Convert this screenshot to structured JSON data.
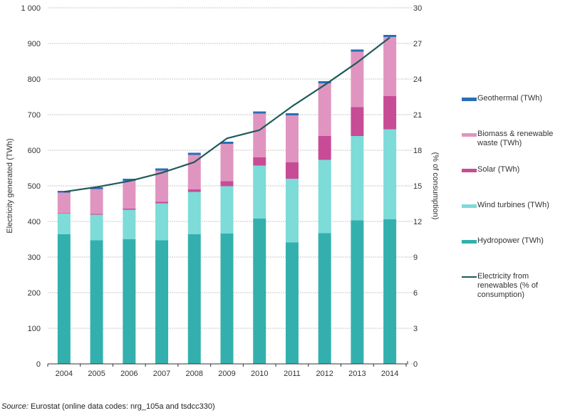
{
  "chart_data": {
    "type": "bar",
    "stacked": true,
    "title": "",
    "categories": [
      "2004",
      "2005",
      "2006",
      "2007",
      "2008",
      "2009",
      "2010",
      "2011",
      "2012",
      "2013",
      "2014"
    ],
    "ylabel": "Electricity generated (TWh)",
    "y2label": "(% of consumption)",
    "ylim": [
      0,
      1000
    ],
    "y2lim": [
      0,
      30
    ],
    "yticks": [
      0,
      100,
      200,
      300,
      400,
      500,
      600,
      700,
      800,
      900,
      1000
    ],
    "yticklabels": [
      "0",
      "100",
      "200",
      "300",
      "400",
      "500",
      "600",
      "700",
      "800",
      "900",
      "1 000"
    ],
    "y2ticks": [
      0,
      3,
      6,
      9,
      12,
      15,
      18,
      21,
      24,
      27,
      30
    ],
    "y2ticklabels": [
      "0",
      "3",
      "6",
      "9",
      "12",
      "15",
      "18",
      "21",
      "24",
      "27",
      "30"
    ],
    "grid": true,
    "legend_position": "right",
    "series": [
      {
        "name": "Hydropower (TWh)",
        "color": "#33b0ad",
        "axis": "left",
        "kind": "bar",
        "values": [
          364,
          347,
          350,
          347,
          364,
          366,
          408,
          341,
          367,
          403,
          406
        ]
      },
      {
        "name": "Wind turbines (TWh)",
        "color": "#7ddbd8",
        "axis": "left",
        "kind": "bar",
        "values": [
          58,
          72,
          83,
          104,
          119,
          133,
          149,
          179,
          206,
          237,
          253
        ]
      },
      {
        "name": "Solar (TWh)",
        "color": "#c84b96",
        "axis": "left",
        "kind": "bar",
        "values": [
          1,
          2,
          3,
          4,
          7,
          14,
          23,
          46,
          67,
          81,
          93
        ]
      },
      {
        "name": "Biomass & renewable waste (TWh)",
        "color": "#e095c0",
        "axis": "left",
        "kind": "bar",
        "values": [
          58,
          70,
          78,
          88,
          97,
          105,
          123,
          132,
          148,
          156,
          166
        ]
      },
      {
        "name": "Geothermal (TWh)",
        "color": "#2a6fb6",
        "axis": "left",
        "kind": "bar",
        "values": [
          5,
          5,
          6,
          6,
          6,
          6,
          6,
          6,
          6,
          6,
          6
        ]
      },
      {
        "name": "Electricity from renewables (% of consumption)",
        "color": "#1f5a5a",
        "axis": "right",
        "kind": "line",
        "values": [
          14.5,
          14.9,
          15.4,
          16.1,
          17.0,
          19.0,
          19.7,
          21.7,
          23.5,
          25.4,
          27.5
        ]
      }
    ]
  },
  "legend": {
    "items": [
      {
        "label": "Geothermal (TWh)",
        "color": "#2a6fb6",
        "kind": "bar"
      },
      {
        "label": "Biomass & renewable waste (TWh)",
        "color": "#e095c0",
        "kind": "bar"
      },
      {
        "label": "Solar (TWh)",
        "color": "#c84b96",
        "kind": "bar"
      },
      {
        "label": "Wind turbines (TWh)",
        "color": "#7ddbd8",
        "kind": "bar"
      },
      {
        "label": "Hydropower (TWh)",
        "color": "#33b0ad",
        "kind": "bar"
      },
      {
        "label": "Electricity from renewables (% of consumption)",
        "color": "#1f5a5a",
        "kind": "line"
      }
    ]
  },
  "source": {
    "prefix": "Source:",
    "text": " Eurostat (online data codes: nrg_105a and tsdcc330)"
  }
}
